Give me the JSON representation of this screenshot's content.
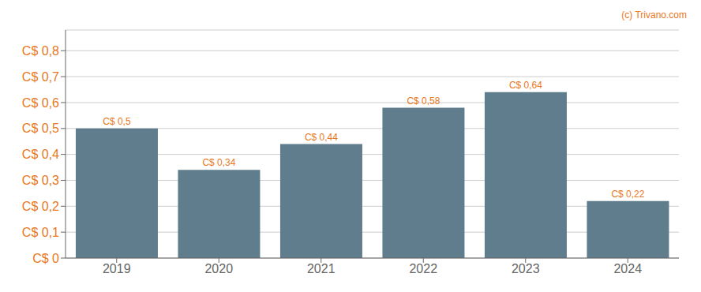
{
  "chart_data": {
    "type": "bar",
    "categories": [
      "2019",
      "2020",
      "2021",
      "2022",
      "2023",
      "2024"
    ],
    "values": [
      0.5,
      0.34,
      0.44,
      0.58,
      0.64,
      0.22
    ],
    "value_labels": [
      "C$ 0,5",
      "C$ 0,34",
      "C$ 0,44",
      "C$ 0,58",
      "C$ 0,64",
      "C$ 0,22"
    ],
    "color": "#5f7d8c",
    "ylim": [
      0,
      0.88
    ],
    "yticks": [
      {
        "value": 0,
        "label": "C$ 0"
      },
      {
        "value": 0.1,
        "label": "C$ 0,1"
      },
      {
        "value": 0.2,
        "label": "C$ 0,2"
      },
      {
        "value": 0.3,
        "label": "C$ 0,3"
      },
      {
        "value": 0.4,
        "label": "C$ 0,4"
      },
      {
        "value": 0.5,
        "label": "C$ 0,5"
      },
      {
        "value": 0.6,
        "label": "C$ 0,6"
      },
      {
        "value": 0.7,
        "label": "C$ 0,7"
      },
      {
        "value": 0.8,
        "label": "C$ 0,8"
      }
    ],
    "grid": true,
    "data_labels": true,
    "annotations": [
      "(c) Trivano.com"
    ]
  }
}
